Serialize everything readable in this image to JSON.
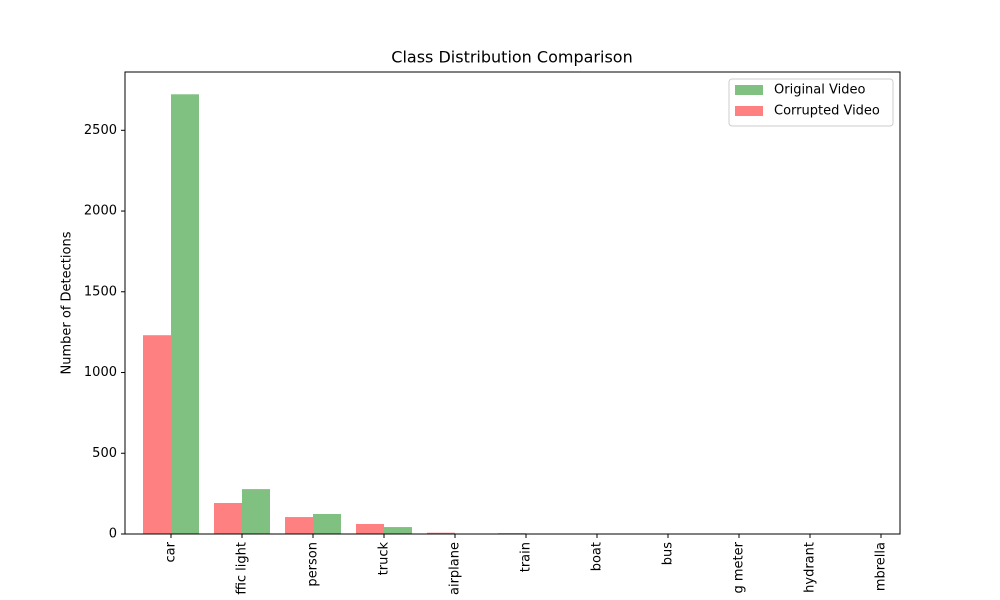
{
  "chart_data": {
    "type": "bar",
    "title": "Class Distribution Comparison",
    "y_label": "Number of Detections",
    "categories": [
      "car",
      "ffic light",
      "person",
      "truck",
      "airplane",
      "train",
      "boat",
      "bus",
      "g meter",
      "hydrant",
      "mbrella"
    ],
    "series": [
      {
        "name": "Original Video",
        "color": "#80c080",
        "values": [
          2723,
          278,
          124,
          43,
          0,
          0,
          0,
          0,
          0,
          0,
          0
        ]
      },
      {
        "name": "Corrupted Video",
        "color": "#ff8080",
        "values": [
          1231,
          192,
          105,
          62,
          8,
          5,
          0,
          0,
          0,
          0,
          0
        ]
      }
    ],
    "ylim": [
      0,
      2861
    ],
    "yticks": [
      0,
      500,
      1000,
      1500,
      2000,
      2500
    ],
    "legend": "upper right"
  }
}
